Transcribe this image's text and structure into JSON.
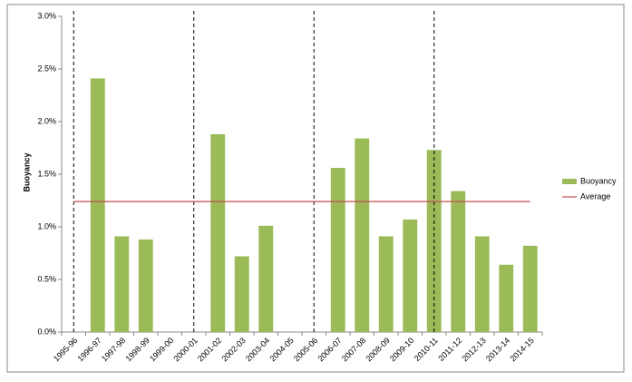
{
  "chart_data": {
    "type": "bar",
    "y_label": "Buoyancy",
    "categories": [
      "1995-96",
      "1996-97",
      "1997-98",
      "1998-99",
      "1999-00",
      "2000-01",
      "2001-02",
      "2002-03",
      "2003-04",
      "2004-05",
      "2005-06",
      "2006-07",
      "2007-08",
      "2008-09",
      "2009-10",
      "2010-11",
      "2011-12",
      "2012-13",
      "2013-14",
      "2014-15"
    ],
    "series": [
      {
        "name": "Buoyancy",
        "color": "#9bbb59",
        "type": "bar",
        "values": [
          null,
          2.41,
          0.91,
          0.88,
          null,
          null,
          1.88,
          0.72,
          1.01,
          null,
          null,
          1.56,
          1.84,
          0.91,
          1.07,
          1.73,
          1.34,
          0.91,
          0.64,
          0.82
        ]
      },
      {
        "name": "Average",
        "color": "#c0504d",
        "type": "line",
        "values": [
          1.24,
          1.24,
          1.24,
          1.24,
          1.24,
          1.24,
          1.24,
          1.24,
          1.24,
          1.24,
          1.24,
          1.24,
          1.24,
          1.24,
          1.24,
          1.24,
          1.24,
          1.24,
          1.24,
          1.24
        ]
      }
    ],
    "dashed_markers": [
      "1995-96",
      "2000-01",
      "2005-06",
      "2010-11"
    ],
    "ylim": [
      0,
      3
    ],
    "yticks": [
      {
        "value": 0,
        "label": "0.0%"
      },
      {
        "value": 0.5,
        "label": "0.5%"
      },
      {
        "value": 1,
        "label": "1.0%"
      },
      {
        "value": 1.5,
        "label": "1.5%"
      },
      {
        "value": 2,
        "label": "2.0%"
      },
      {
        "value": 2.5,
        "label": "2.5%"
      },
      {
        "value": 3,
        "label": "3.0%"
      }
    ],
    "legend": "right"
  }
}
